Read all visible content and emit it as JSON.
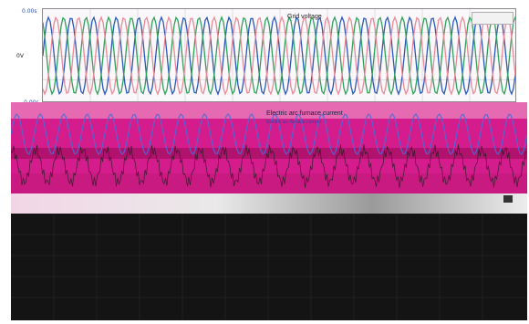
{
  "top_panel": {
    "title": "Grid voltage",
    "left_label": "0V",
    "y_top": "0.00s",
    "y_bottom": "-0.00s",
    "colors": {
      "phase_a": "#2a58b8",
      "phase_b": "#2fa05a",
      "phase_c": "#e98a98",
      "grid": "#c9c9c9"
    }
  },
  "bottom_panel": {
    "title": "Electric arc furnace current",
    "subtitle": "Electric arc furnace current",
    "colors": {
      "bg": "#d41c8c",
      "trace": "#1a1a1a",
      "blue": "#4a6cd8"
    }
  }
}
